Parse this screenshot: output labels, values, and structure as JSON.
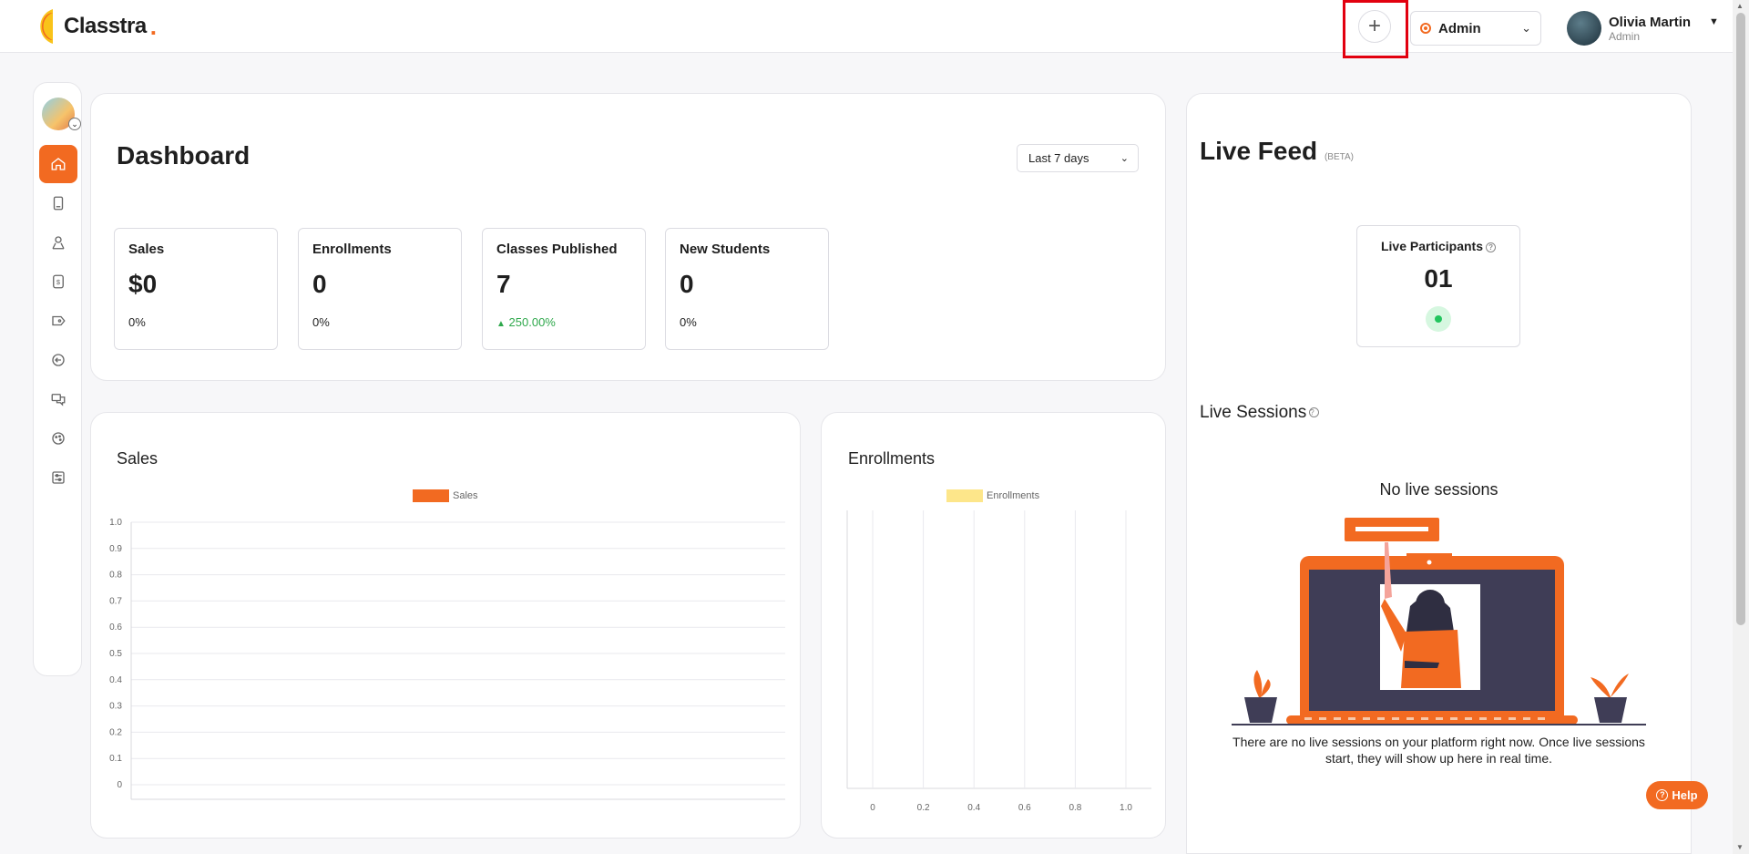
{
  "app": {
    "name": "Classtra",
    "brand_color": "#f26a21"
  },
  "topbar": {
    "add_icon": "plus-icon",
    "role": "Admin",
    "user": {
      "name": "Olivia Martin",
      "role": "Admin"
    }
  },
  "sidebar": {
    "items": [
      {
        "icon": "home-icon",
        "active": true
      },
      {
        "icon": "book-icon"
      },
      {
        "icon": "users-icon"
      },
      {
        "icon": "dollar-icon"
      },
      {
        "icon": "tag-icon"
      },
      {
        "icon": "arrow-left-circle-icon"
      },
      {
        "icon": "chat-icon"
      },
      {
        "icon": "palette-icon"
      },
      {
        "icon": "settings-sliders-icon"
      }
    ]
  },
  "dashboard": {
    "title": "Dashboard",
    "range": "Last 7 days",
    "stats": [
      {
        "label": "Sales",
        "value": "$0",
        "change": "0%"
      },
      {
        "label": "Enrollments",
        "value": "0",
        "change": "0%"
      },
      {
        "label": "Classes Published",
        "value": "7",
        "change": "250.00%",
        "trend": "up"
      },
      {
        "label": "New Students",
        "value": "0",
        "change": "0%"
      }
    ]
  },
  "sales_chart": {
    "title": "Sales",
    "legend": "Sales",
    "color": "#f26a21"
  },
  "enrollments_chart": {
    "title": "Enrollments",
    "legend": "Enrollments",
    "color": "#fde68a"
  },
  "chart_data": [
    {
      "type": "line",
      "title": "Sales",
      "series": [
        {
          "name": "Sales",
          "values": []
        }
      ],
      "y_ticks": [
        "1.0",
        "0.9",
        "0.8",
        "0.7",
        "0.6",
        "0.5",
        "0.4",
        "0.3",
        "0.2",
        "0.1",
        "0"
      ],
      "ylim": [
        0,
        1
      ],
      "grid": true,
      "legend_position": "top-center"
    },
    {
      "type": "bar",
      "title": "Enrollments",
      "series": [
        {
          "name": "Enrollments",
          "values": []
        }
      ],
      "x_ticks": [
        "0",
        "0.2",
        "0.4",
        "0.6",
        "0.8",
        "1.0"
      ],
      "xlim": [
        0,
        1
      ],
      "grid": true,
      "legend_position": "top-center"
    }
  ],
  "live_feed": {
    "title": "Live Feed",
    "beta": "(BETA)",
    "participants_label": "Live Participants",
    "participants_value": "01",
    "sessions_title": "Live Sessions",
    "no_sessions": "No live sessions",
    "description": "There are no live sessions on your platform right now. Once live sessions start, they will show up here in real time."
  },
  "help": {
    "label": "Help"
  }
}
